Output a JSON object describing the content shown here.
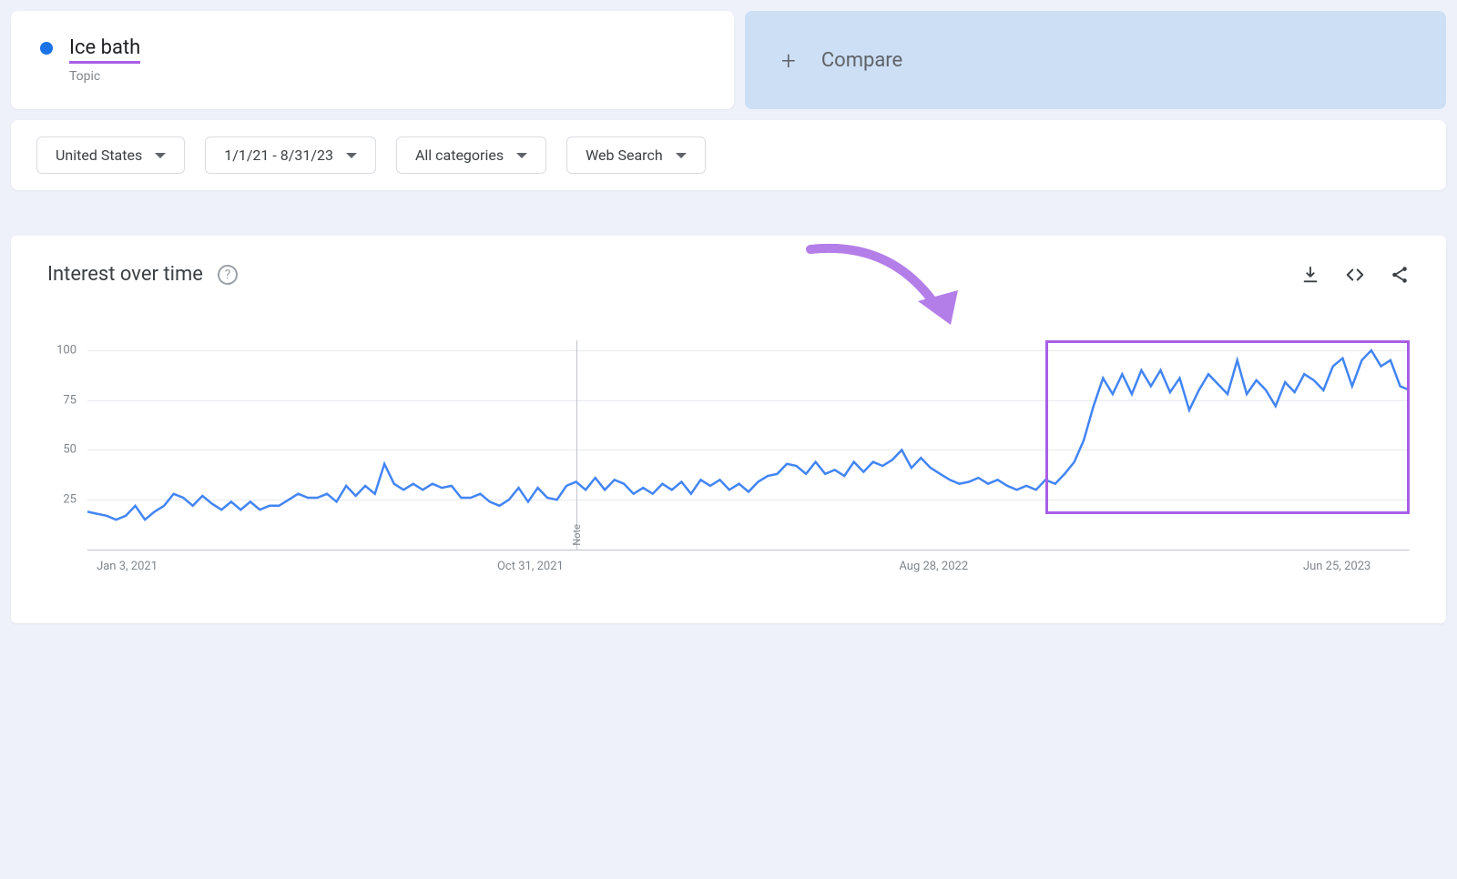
{
  "search_term": {
    "title": "Ice bath",
    "subtitle": "Topic",
    "dot_color": "#1a73e8",
    "underline_color": "#a85ee6"
  },
  "compare": {
    "label": "Compare",
    "background": "#cddff5"
  },
  "filters": {
    "region": "United States",
    "timerange": "1/1/21 - 8/31/23",
    "category": "All categories",
    "search_type": "Web Search"
  },
  "chart": {
    "title": "Interest over time",
    "type": "line",
    "line_color": "#4285f4",
    "line_width": 2.5,
    "grid_color": "#e8eaed",
    "axis_label_color": "#80868b",
    "background_color": "#ffffff",
    "y_ticks": [
      25,
      50,
      75,
      100
    ],
    "ylim": [
      0,
      105
    ],
    "x_tick_labels": [
      "Jan 3, 2021",
      "Oct 31, 2021",
      "Aug 28, 2022",
      "Jun 25, 2023"
    ],
    "x_tick_positions_pct": [
      3,
      33.5,
      64,
      94.5
    ],
    "note_position_pct": 37,
    "note_label": "Note",
    "values": [
      19,
      18,
      17,
      15,
      17,
      22,
      15,
      19,
      22,
      28,
      26,
      22,
      27,
      23,
      20,
      24,
      20,
      24,
      20,
      22,
      22,
      25,
      28,
      26,
      26,
      28,
      24,
      32,
      27,
      32,
      28,
      43,
      33,
      30,
      33,
      30,
      33,
      31,
      32,
      26,
      26,
      28,
      24,
      22,
      25,
      31,
      24,
      31,
      26,
      25,
      32,
      34,
      30,
      36,
      30,
      35,
      33,
      28,
      31,
      28,
      33,
      30,
      34,
      28,
      35,
      32,
      35,
      30,
      33,
      29,
      34,
      37,
      38,
      43,
      42,
      38,
      44,
      38,
      40,
      37,
      44,
      39,
      44,
      42,
      45,
      50,
      41,
      46,
      41,
      38,
      35,
      33,
      34,
      36,
      33,
      35,
      32,
      30,
      32,
      30,
      35,
      33,
      38,
      44,
      55,
      72,
      86,
      78,
      88,
      78,
      90,
      82,
      90,
      79,
      86,
      70,
      80,
      88,
      83,
      78,
      95,
      78,
      85,
      80,
      72,
      84,
      79,
      88,
      85,
      80,
      92,
      96,
      82,
      95,
      100,
      92,
      95,
      82,
      80
    ],
    "highlight": {
      "color": "#a85ee6",
      "start_index": 100,
      "end_index": 138,
      "y_top_value": 105,
      "y_bottom_value": 18
    },
    "arrow": {
      "color": "#b47ee8"
    }
  },
  "icons": {
    "help": "?",
    "download": "download-icon",
    "embed": "embed-icon",
    "share": "share-icon"
  }
}
